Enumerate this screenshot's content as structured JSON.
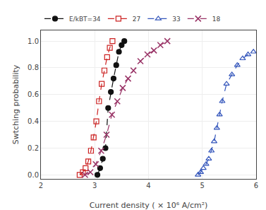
{
  "chart_data": {
    "type": "line",
    "xlabel": "Current density ( × 10⁶ A/cm²)",
    "ylabel": "Swtching probability",
    "xlim": [
      2.0,
      6.0
    ],
    "ylim": [
      -0.03,
      1.08
    ],
    "xticks": [
      2,
      3,
      4,
      5,
      6
    ],
    "yticks": [
      {
        "value": 0.0,
        "label": "0.0"
      },
      0.2,
      0.4,
      0.6,
      0.8,
      {
        "value": 1.0,
        "label": "1.0"
      }
    ],
    "legend": "upper left",
    "series": [
      {
        "name": "E/kBT=34",
        "color": "#111111",
        "marker": "circle",
        "line_style": "dash",
        "x": [
          3.05,
          3.1,
          3.15,
          3.2,
          3.25,
          3.3,
          3.35,
          3.4,
          3.45,
          3.5,
          3.55
        ],
        "values": [
          0.0,
          0.05,
          0.12,
          0.2,
          0.5,
          0.62,
          0.72,
          0.82,
          0.92,
          0.97,
          1.0
        ]
      },
      {
        "name": "27",
        "color": "#cc2222",
        "marker": "square-open",
        "line_style": "dash",
        "x": [
          2.72,
          2.78,
          2.83,
          2.88,
          2.93,
          2.98,
          3.03,
          3.08,
          3.13,
          3.18,
          3.23,
          3.28,
          3.33
        ],
        "values": [
          0.0,
          0.02,
          0.05,
          0.1,
          0.18,
          0.28,
          0.4,
          0.55,
          0.68,
          0.78,
          0.88,
          0.95,
          1.0
        ]
      },
      {
        "name": "33",
        "color": "#3355bb",
        "marker": "triangle-up-open",
        "line_style": "dash",
        "x": [
          4.92,
          4.97,
          5.02,
          5.07,
          5.12,
          5.17,
          5.22,
          5.27,
          5.32,
          5.37,
          5.45,
          5.55,
          5.65,
          5.75,
          5.85,
          5.95
        ],
        "values": [
          0.0,
          0.02,
          0.05,
          0.08,
          0.12,
          0.18,
          0.25,
          0.35,
          0.45,
          0.55,
          0.68,
          0.75,
          0.82,
          0.87,
          0.9,
          0.92
        ]
      },
      {
        "name": "18",
        "color": "#993366",
        "marker": "x-thin-open",
        "line_style": "dash",
        "x": [
          2.82,
          2.92,
          3.02,
          3.12,
          3.22,
          3.32,
          3.42,
          3.52,
          3.62,
          3.72,
          3.85,
          3.98,
          4.1,
          4.22,
          4.35
        ],
        "values": [
          0.0,
          0.02,
          0.08,
          0.18,
          0.3,
          0.45,
          0.55,
          0.65,
          0.72,
          0.78,
          0.85,
          0.9,
          0.93,
          0.97,
          1.0
        ]
      }
    ]
  }
}
